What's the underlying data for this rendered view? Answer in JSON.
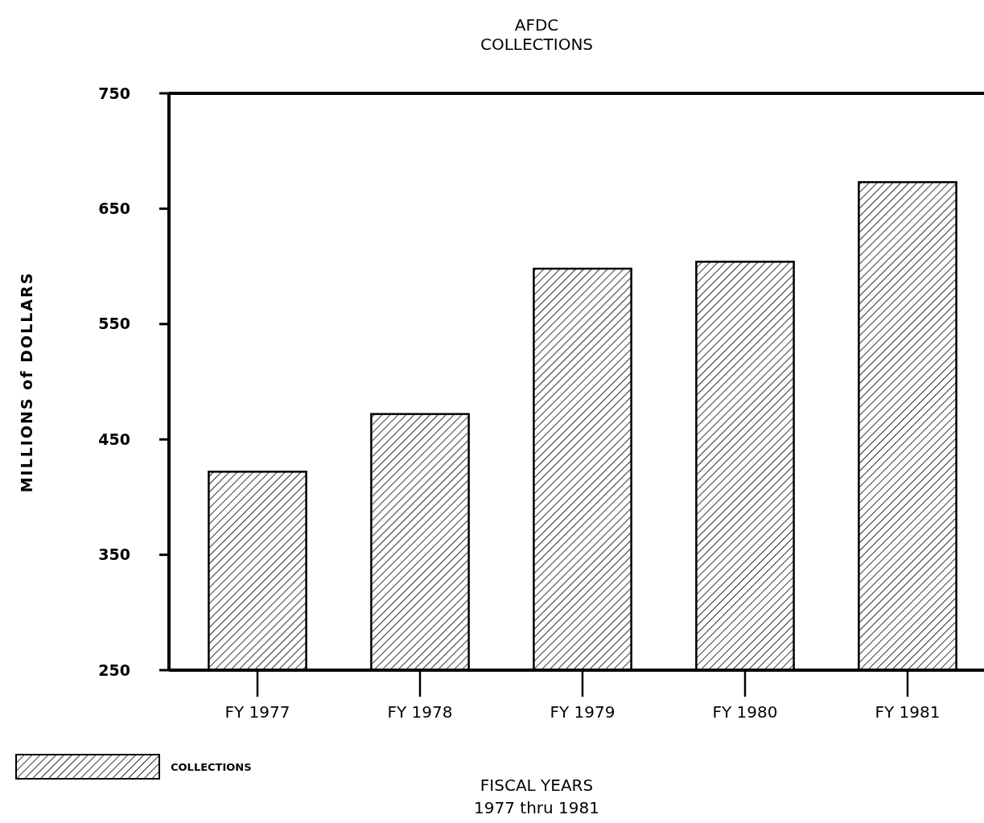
{
  "chart_data": {
    "type": "bar",
    "title": "AFDC\nCOLLECTIONS",
    "xlabel": "FISCAL YEARS\n1977 thru 1981",
    "ylabel": "MILLIONS of DOLLARS",
    "categories": [
      "FY 1977",
      "FY 1978",
      "FY 1979",
      "FY 1980",
      "FY 1981"
    ],
    "series": [
      {
        "name": "COLLECTIONS",
        "color": "#000000",
        "values": [
          422,
          472,
          598,
          604,
          673
        ]
      }
    ],
    "ylim": [
      250,
      750
    ],
    "yticks": [
      250,
      350,
      450,
      550,
      650,
      750
    ],
    "grid": false,
    "legend": "bottom left"
  }
}
